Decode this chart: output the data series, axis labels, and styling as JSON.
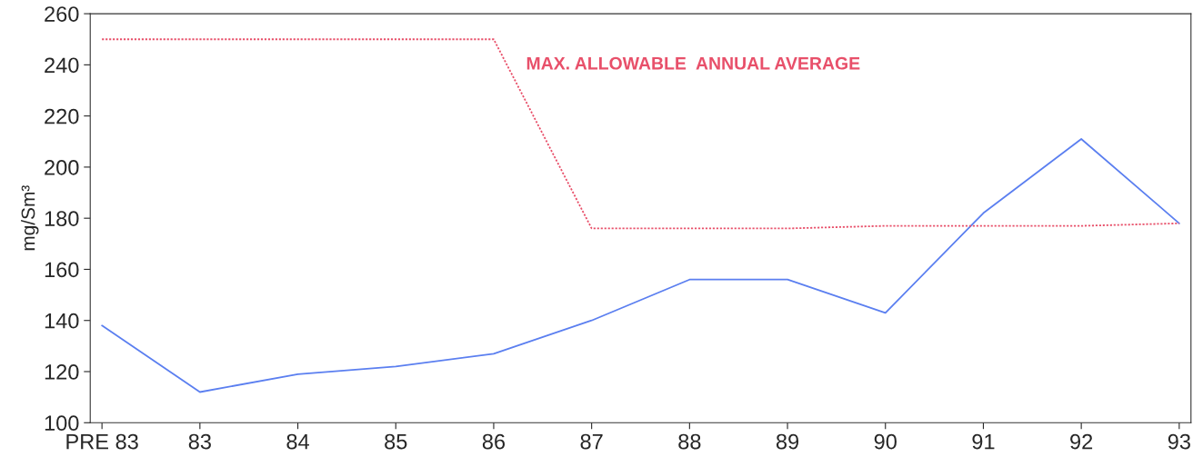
{
  "chart_data": {
    "type": "line",
    "ylabel": "mg/Sm³",
    "categories": [
      "PRE 83",
      "83",
      "84",
      "85",
      "86",
      "87",
      "88",
      "89",
      "90",
      "91",
      "92",
      "93"
    ],
    "series": [
      {
        "color": "#5b7ff0",
        "line_style": "solid",
        "values": [
          138,
          112,
          119,
          122,
          127,
          140,
          156,
          156,
          143,
          182,
          211,
          178
        ]
      },
      {
        "name": "MAX. ALLOWABLE  ANNUAL AVERAGE",
        "color": "#e8506a",
        "line_style": "dotted",
        "values": [
          250,
          250,
          250,
          250,
          250,
          176,
          176,
          176,
          177,
          177,
          177,
          178
        ]
      }
    ],
    "ylim": [
      100,
      260
    ],
    "yticks": [
      100,
      120,
      140,
      160,
      180,
      200,
      220,
      240,
      260
    ],
    "grid": false,
    "legend": false,
    "marker": "none"
  }
}
